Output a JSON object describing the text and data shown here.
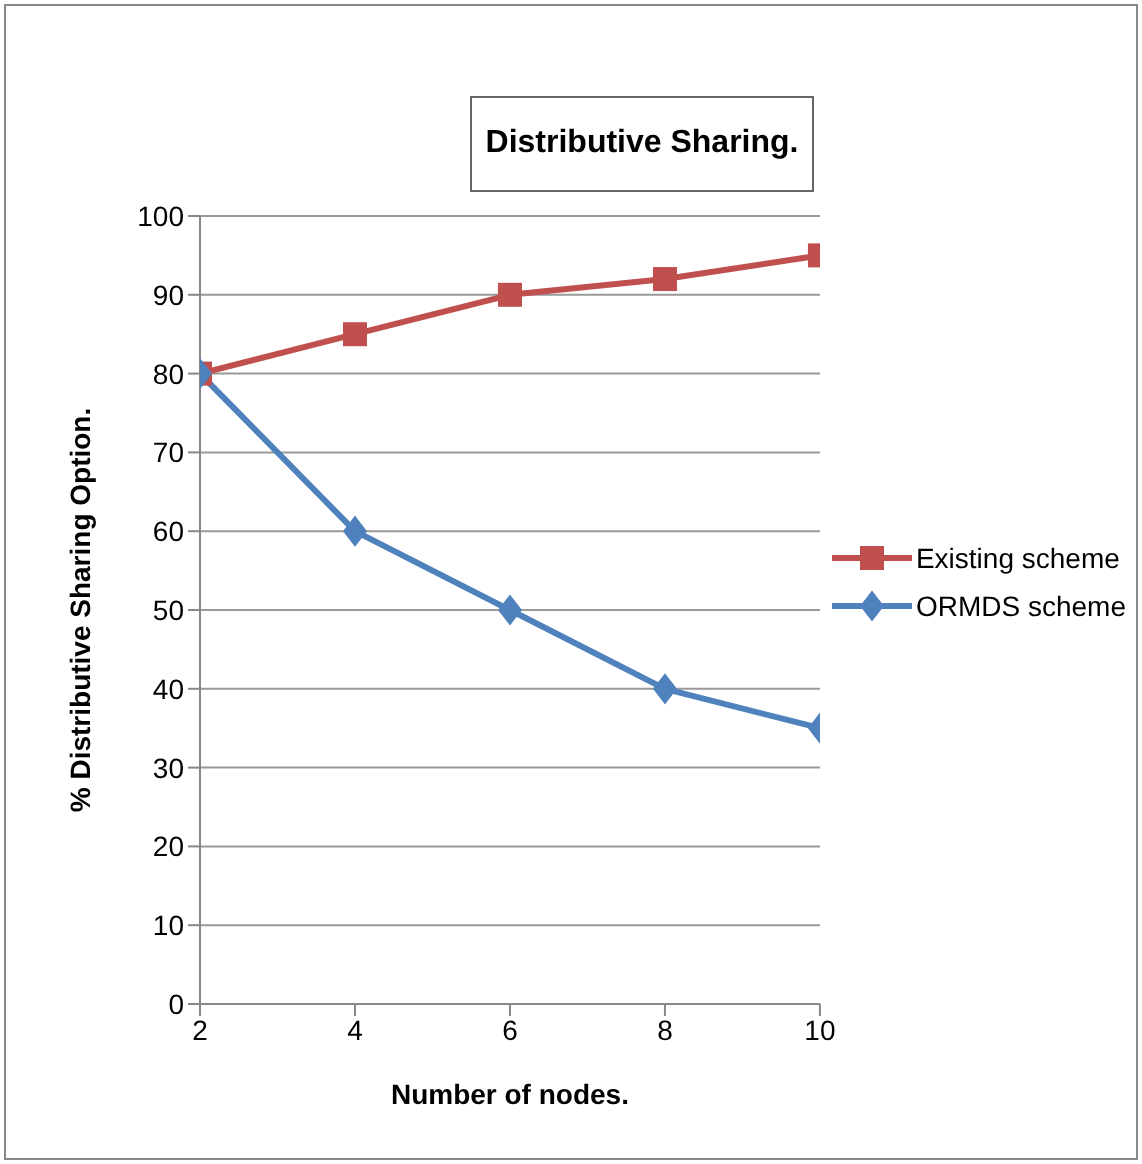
{
  "chart_data": {
    "type": "line",
    "title": "Distributive Sharing.",
    "xlabel": "Number of nodes.",
    "ylabel": "% Distributive Sharing Option.",
    "x": [
      2,
      4,
      6,
      8,
      10
    ],
    "xlim": [
      2,
      10
    ],
    "xticks": [
      2,
      4,
      6,
      8,
      10
    ],
    "ylim": [
      0,
      100
    ],
    "yticks": [
      0,
      10,
      20,
      30,
      40,
      50,
      60,
      70,
      80,
      90,
      100
    ],
    "grid": "y",
    "legend": "right",
    "series": [
      {
        "name": "Existing scheme",
        "color": "#c0504d",
        "marker": "square",
        "values": [
          80,
          85,
          90,
          92,
          95
        ]
      },
      {
        "name": "ORMDS scheme",
        "color": "#4f81bd",
        "marker": "diamond",
        "values": [
          80,
          60,
          50,
          40,
          35
        ]
      }
    ]
  }
}
